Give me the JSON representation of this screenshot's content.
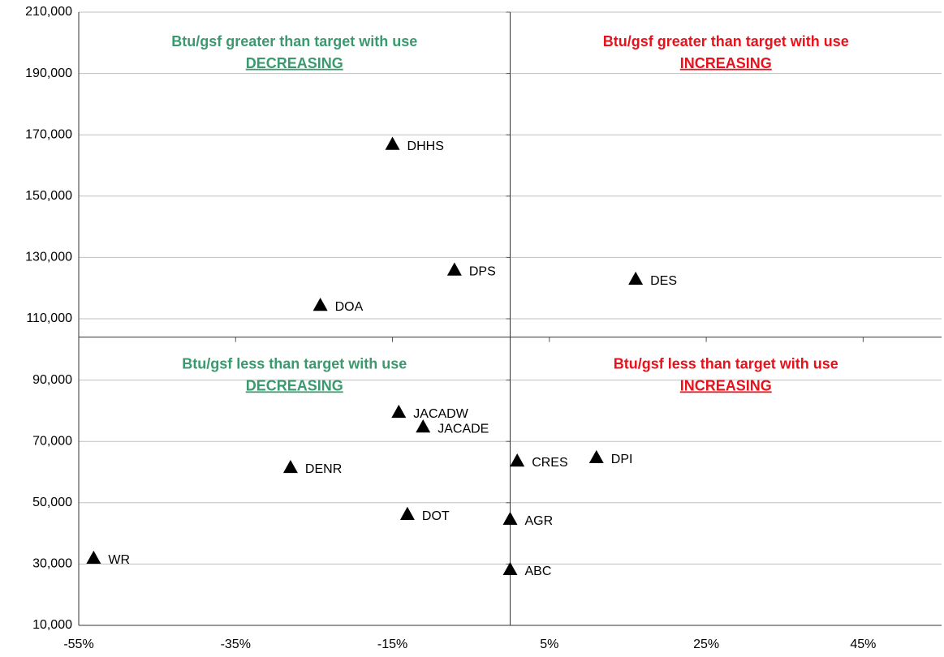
{
  "chart_data": {
    "type": "scatter",
    "xlim": [
      -55,
      55
    ],
    "ylim": [
      10000,
      210000
    ],
    "xticks": [
      {
        "value": -55,
        "label": "-55%"
      },
      {
        "value": -35,
        "label": "-35%"
      },
      {
        "value": -15,
        "label": "-15%"
      },
      {
        "value": 5,
        "label": "5%"
      },
      {
        "value": 25,
        "label": "25%"
      },
      {
        "value": 45,
        "label": "45%"
      }
    ],
    "yticks": [
      {
        "value": 10000,
        "label": "10,000"
      },
      {
        "value": 30000,
        "label": "30,000"
      },
      {
        "value": 50000,
        "label": "50,000"
      },
      {
        "value": 70000,
        "label": "70,000"
      },
      {
        "value": 90000,
        "label": "90,000"
      },
      {
        "value": 110000,
        "label": "110,000"
      },
      {
        "value": 130000,
        "label": "130,000"
      },
      {
        "value": 150000,
        "label": "150,000"
      },
      {
        "value": 170000,
        "label": "170,000"
      },
      {
        "value": 190000,
        "label": "190,000"
      },
      {
        "value": 210000,
        "label": "210,000"
      }
    ],
    "grid": true,
    "x_cross": 0,
    "y_cross": 104000,
    "color": "#000000",
    "labels": [
      "DHHS",
      "DPS",
      "DOA",
      "DES",
      "JACADW",
      "JACADE",
      "DENR",
      "DOT",
      "WR",
      "CRES",
      "DPI",
      "AGR",
      "ABC"
    ],
    "x": [
      -15,
      -7.1,
      -24.2,
      16,
      -14.2,
      -11.1,
      -28,
      -13.1,
      -53.1,
      0.9,
      11,
      0,
      0
    ],
    "values": [
      167000,
      126000,
      114500,
      123000,
      79600,
      74800,
      61600,
      46300,
      32000,
      63700,
      64800,
      44700,
      28300
    ],
    "annotations": [
      {
        "text": "Btu/gsf  greater than target with use",
        "emphasis": "DECREASING",
        "color": "#3a9a6e",
        "corner": "upper left"
      },
      {
        "text": "Btu/gsf  greater than target with use",
        "emphasis": "INCREASING",
        "color": "#e8121c",
        "corner": "upper right"
      },
      {
        "text": "Btu/gsf  less than target with use",
        "emphasis": "DECREASING",
        "color": "#3a9a6e",
        "corner": "lower left"
      },
      {
        "text": "Btu/gsf  less than target with use",
        "emphasis": "INCREASING",
        "color": "#e8121c",
        "corner": "lower right"
      }
    ]
  }
}
